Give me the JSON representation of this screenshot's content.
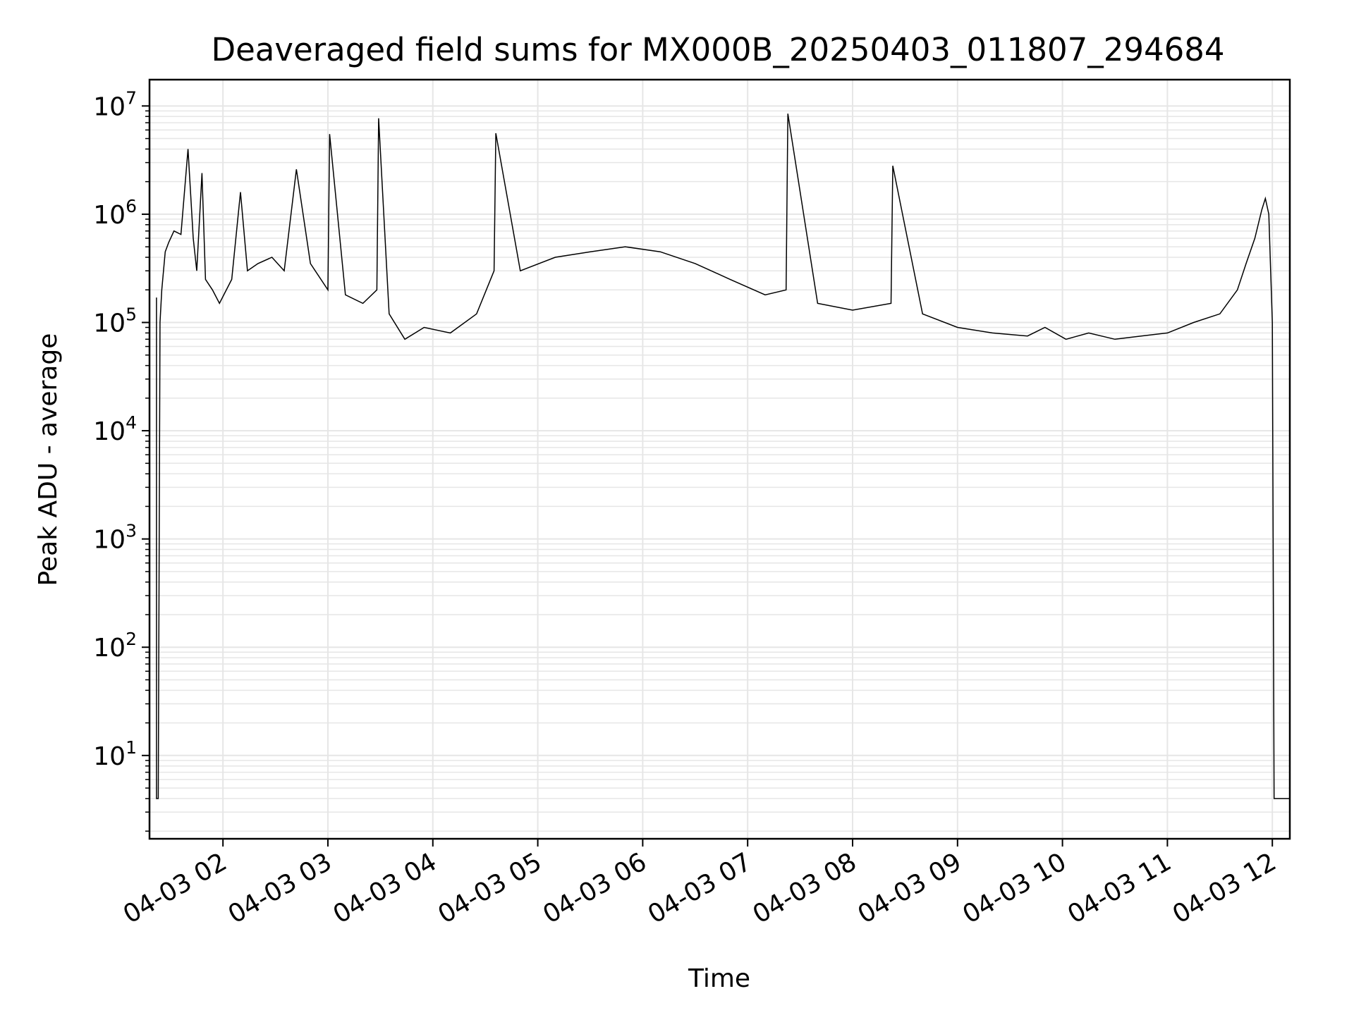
{
  "chart_data": {
    "type": "line",
    "title": "Deaveraged field sums for MX000B_20250403_011807_294684",
    "xlabel": "Time",
    "ylabel": "Peak ADU - average",
    "yscale": "log",
    "ylim": [
      1.7,
      17500000
    ],
    "xlim": [
      "2025-04-03 01:18",
      "2025-04-03 12:10"
    ],
    "grid": true,
    "line_color": "#000000",
    "grid_color": "#e6e6e6",
    "x_ticks": [
      {
        "t": "2025-04-03 02:00",
        "label": "04-03 02"
      },
      {
        "t": "2025-04-03 03:00",
        "label": "04-03 03"
      },
      {
        "t": "2025-04-03 04:00",
        "label": "04-03 04"
      },
      {
        "t": "2025-04-03 05:00",
        "label": "04-03 05"
      },
      {
        "t": "2025-04-03 06:00",
        "label": "04-03 06"
      },
      {
        "t": "2025-04-03 07:00",
        "label": "04-03 07"
      },
      {
        "t": "2025-04-03 08:00",
        "label": "04-03 08"
      },
      {
        "t": "2025-04-03 09:00",
        "label": "04-03 09"
      },
      {
        "t": "2025-04-03 10:00",
        "label": "04-03 10"
      },
      {
        "t": "2025-04-03 11:00",
        "label": "04-03 11"
      },
      {
        "t": "2025-04-03 12:00",
        "label": "04-03 12"
      }
    ],
    "y_ticks": [
      {
        "value": 10,
        "base": "10",
        "exp": "1"
      },
      {
        "value": 100,
        "base": "10",
        "exp": "2"
      },
      {
        "value": 1000,
        "base": "10",
        "exp": "3"
      },
      {
        "value": 10000,
        "base": "10",
        "exp": "4"
      },
      {
        "value": 100000,
        "base": "10",
        "exp": "5"
      },
      {
        "value": 1000000,
        "base": "10",
        "exp": "6"
      },
      {
        "value": 10000000,
        "base": "10",
        "exp": "7"
      }
    ],
    "series": [
      {
        "values_note_free": true,
        "x": [
          "2025-04-03 01:22",
          "2025-04-03 01:22",
          "2025-04-03 01:23",
          "2025-04-03 01:24",
          "2025-04-03 01:25",
          "2025-04-03 01:27",
          "2025-04-03 01:29",
          "2025-04-03 01:32",
          "2025-04-03 01:36",
          "2025-04-03 01:40",
          "2025-04-03 01:43",
          "2025-04-03 01:45",
          "2025-04-03 01:48",
          "2025-04-03 01:50",
          "2025-04-03 01:54",
          "2025-04-03 01:58",
          "2025-04-03 02:05",
          "2025-04-03 02:10",
          "2025-04-03 02:14",
          "2025-04-03 02:20",
          "2025-04-03 02:28",
          "2025-04-03 02:35",
          "2025-04-03 02:42",
          "2025-04-03 02:50",
          "2025-04-03 03:00",
          "2025-04-03 03:01",
          "2025-04-03 03:10",
          "2025-04-03 03:20",
          "2025-04-03 03:28",
          "2025-04-03 03:29",
          "2025-04-03 03:35",
          "2025-04-03 03:44",
          "2025-04-03 03:55",
          "2025-04-03 04:10",
          "2025-04-03 04:25",
          "2025-04-03 04:35",
          "2025-04-03 04:36",
          "2025-04-03 04:50",
          "2025-04-03 05:10",
          "2025-04-03 05:30",
          "2025-04-03 05:50",
          "2025-04-03 06:10",
          "2025-04-03 06:30",
          "2025-04-03 06:50",
          "2025-04-03 07:10",
          "2025-04-03 07:22",
          "2025-04-03 07:23",
          "2025-04-03 07:40",
          "2025-04-03 08:00",
          "2025-04-03 08:22",
          "2025-04-03 08:23",
          "2025-04-03 08:40",
          "2025-04-03 09:00",
          "2025-04-03 09:20",
          "2025-04-03 09:40",
          "2025-04-03 09:50",
          "2025-04-03 10:02",
          "2025-04-03 10:15",
          "2025-04-03 10:30",
          "2025-04-03 10:45",
          "2025-04-03 11:00",
          "2025-04-03 11:15",
          "2025-04-03 11:30",
          "2025-04-03 11:40",
          "2025-04-03 11:45",
          "2025-04-03 11:50",
          "2025-04-03 11:54",
          "2025-04-03 11:56",
          "2025-04-03 11:58",
          "2025-04-03 12:00",
          "2025-04-03 12:01",
          "2025-04-03 12:02",
          "2025-04-03 12:03",
          "2025-04-03 12:05",
          "2025-04-03 12:10"
        ],
        "y": [
          170000,
          4,
          4,
          100000,
          200000,
          450000,
          550000,
          700000,
          650000,
          4000000,
          600000,
          300000,
          2400000,
          250000,
          200000,
          150000,
          250000,
          1600000,
          300000,
          350000,
          400000,
          300000,
          2600000,
          350000,
          200000,
          5500000,
          180000,
          150000,
          200000,
          7700000,
          120000,
          70000,
          90000,
          80000,
          120000,
          300000,
          5600000,
          300000,
          400000,
          450000,
          500000,
          450000,
          350000,
          250000,
          180000,
          200000,
          8500000,
          150000,
          130000,
          150000,
          2800000,
          120000,
          90000,
          80000,
          75000,
          90000,
          70000,
          80000,
          70000,
          75000,
          80000,
          100000,
          120000,
          200000,
          350000,
          600000,
          1100000,
          1400000,
          1000000,
          100000,
          4,
          4,
          4,
          4,
          4
        ]
      }
    ]
  }
}
